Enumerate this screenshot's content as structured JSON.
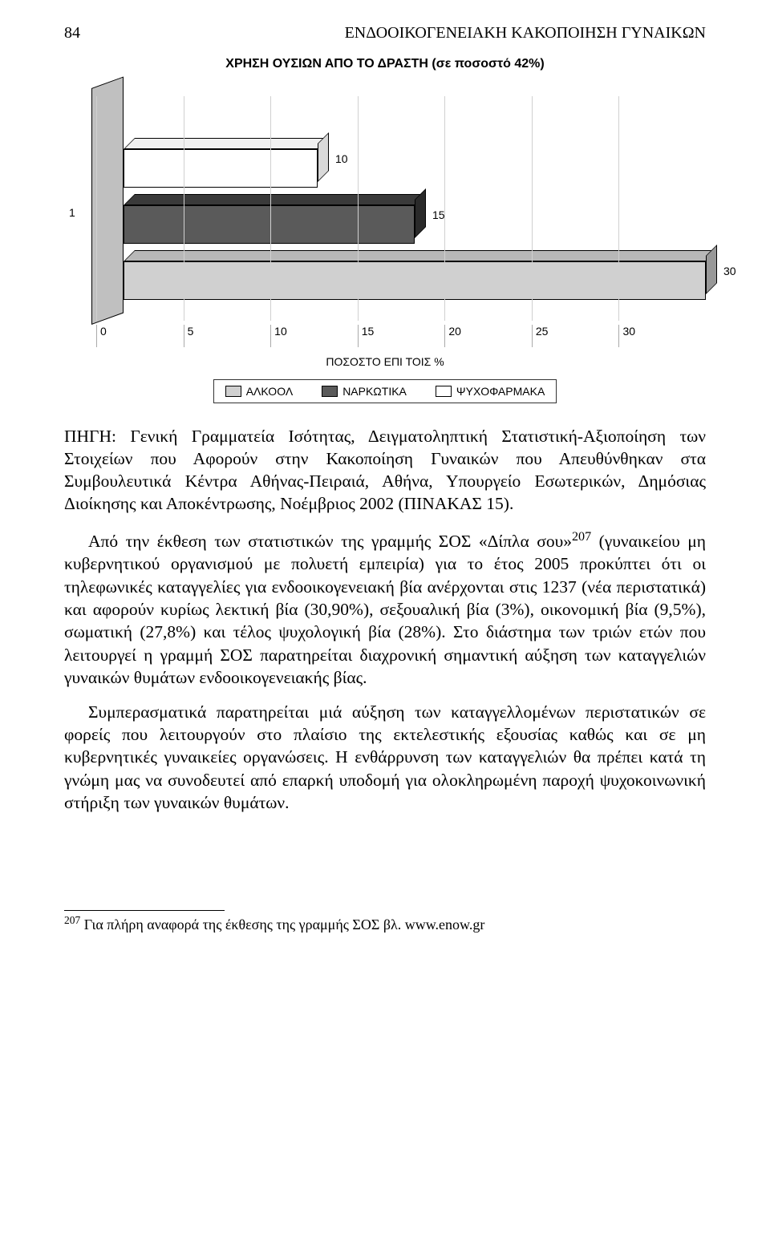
{
  "header": {
    "page_number": "84",
    "running_title": "ΕΝΔΟΟΙΚΟΓΕΝΕΙΑΚΗ ΚΑΚΟΠΟΙΗΣΗ ΓΥΝΑΙΚΩΝ"
  },
  "chart": {
    "type": "bar3d",
    "title": "ΧΡΗΣΗ ΟΥΣΙΩΝ ΑΠΟ ΤΟ ΔΡΑΣΤΗ (σε ποσοστό 42%)",
    "y_axis_tick": "1",
    "x_axis_label": "ΠΟΣΟΣΤΟ ΕΠΙ ΤΟΙΣ %",
    "xlim": [
      0,
      30
    ],
    "xtick_step": 5,
    "xticks": [
      "0",
      "5",
      "10",
      "15",
      "20",
      "25",
      "30"
    ],
    "bars": [
      {
        "label": "ΨΥΧΟΦΑΡΜΑΚΑ",
        "value": 10,
        "color": "#ffffff",
        "top_color": "#f0f0f0",
        "side_color": "#d9d9d9"
      },
      {
        "label": "ΝΑΡΚΩΤΙΚΑ",
        "value": 15,
        "color": "#5a5a5a",
        "top_color": "#3a3a3a",
        "side_color": "#2a2a2a"
      },
      {
        "label": "ΑΛΚΟΟΛ",
        "value": 30,
        "color": "#d0d0d0",
        "top_color": "#b8b8b8",
        "side_color": "#989898"
      }
    ],
    "legend": [
      {
        "label": "ΑΛΚΟΟΛ",
        "color": "#d0d0d0"
      },
      {
        "label": "ΝΑΡΚΩΤΙΚΑ",
        "color": "#5a5a5a"
      },
      {
        "label": "ΨΥΧΟΦΑΡΜΑΚΑ",
        "color": "#ffffff"
      }
    ],
    "value_label_fontsize": 14,
    "axis_label_fontsize": 14,
    "background_color": "#ffffff",
    "grid_color": "#d0d0d0"
  },
  "source": "ΠΗΓΗ: Γενική Γραμματεία Ισότητας, Δειγματοληπτική Στατιστική-Αξιοποίηση των Στοιχείων που Αφορούν στην Κακοποίηση Γυναικών που Απευθύνθηκαν στα Συμβουλευτικά Κέντρα Αθήνας-Πειραιά, Αθήνα, Υπουργείο Εσωτερικών, Δημόσιας Διοίκησης και Αποκέντρωσης, Νοέμβριος 2002 (ΠΙΝΑΚΑΣ 15).",
  "paragraphs": {
    "p1_a": "Από την έκθεση των στατιστικών της γραμμής ΣΟΣ «Δίπλα σου»",
    "p1_sup": "207",
    "p1_b": " (γυναικείου μη κυβερνητικού οργανισμού με πολυετή εμπειρία) για το έτος 2005 προκύπτει ότι οι τηλεφωνικές καταγγελίες για ενδοοικογενειακή βία ανέρχονται στις 1237 (νέα περιστατικά) και αφορούν κυρίως λεκτική βία (30,90%), σεξουαλική βία (3%), οικονομική βία (9,5%),  σωματική (27,8%) και τέλος ψυχολογική βία (28%). Στο διάστημα των τριών ετών που λειτουργεί η γραμμή ΣΟΣ παρατηρείται διαχρονική σημαντική αύξηση των καταγγελιών γυναικών θυμάτων ενδοοικογενειακής βίας.",
    "p2": "Συμπερασματικά παρατηρείται μιά αύξηση των καταγγελλομένων περιστατικών σε φορείς που λειτουργούν στο πλαίσιο της εκτελεστικής εξουσίας καθώς και σε μη κυβερνητικές γυναικείες οργανώσεις. Η ενθάρρυνση των καταγγελιών θα πρέπει κατά τη γνώμη μας να συνοδευτεί από επαρκή υποδομή για ολοκληρωμένη παροχή ψυχοκοινωνική στήριξη των γυναικών θυμάτων."
  },
  "footnote": {
    "marker": "207",
    "text": " Για πλήρη αναφορά της έκθεσης της γραμμής ΣΟΣ βλ. www.enow.gr"
  }
}
